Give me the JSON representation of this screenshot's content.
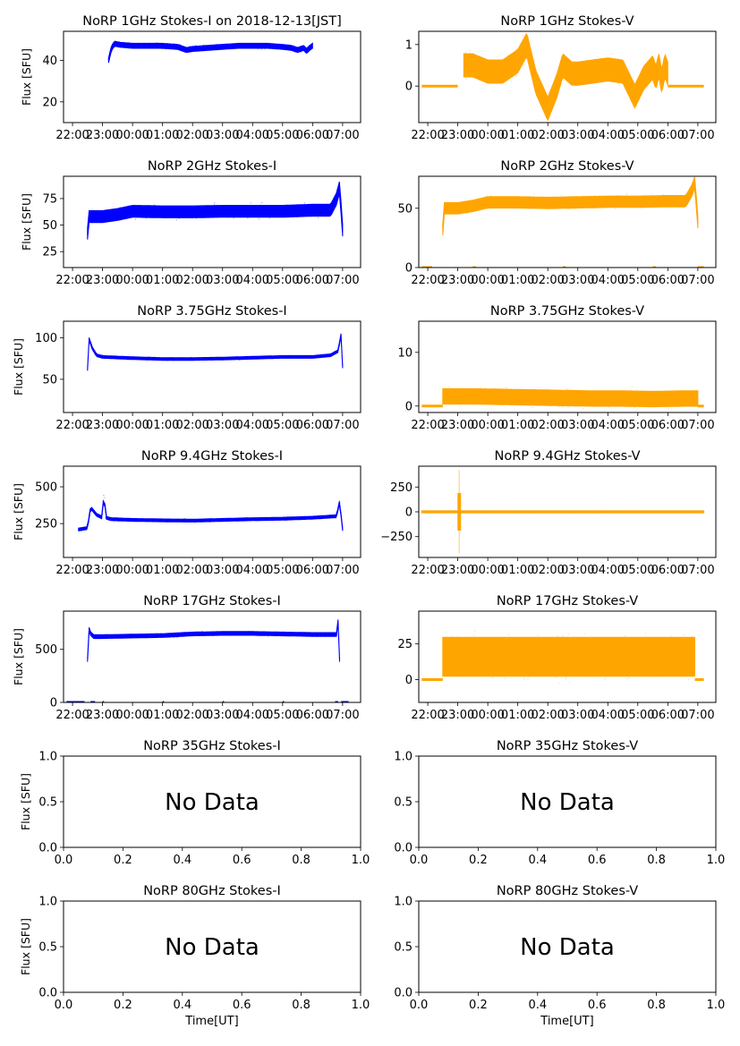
{
  "figure": {
    "x_tick_labels_time": [
      "22:00",
      "23:00",
      "00:00",
      "01:00",
      "02:00",
      "03:00",
      "04:00",
      "05:00",
      "06:00",
      "07:00"
    ],
    "x_tick_labels_nodata": [
      "0.0",
      "0.2",
      "0.4",
      "0.6",
      "0.8",
      "1.0"
    ],
    "y_tick_labels_nodata": [
      "0.0",
      "0.5",
      "1.0"
    ],
    "ylabel": "Flux [SFU]",
    "xlabel_bottom": "Time[UT]",
    "no_data_text": "No Data",
    "colors": {
      "stokes_i": "#0000ff",
      "stokes_v": "#ffa500",
      "axis": "#000000"
    }
  },
  "chart_data": [
    {
      "type": "scatter",
      "row": 0,
      "col": 0,
      "title": "NoRP 1GHz Stokes-I on 2018-12-13[JST]",
      "xlabel": "",
      "ylabel": "Flux [SFU]",
      "xlim_hours": [
        -2.3,
        7.6
      ],
      "ylim": [
        10,
        54
      ],
      "yticks": [
        20,
        40
      ],
      "ytick_labels": [
        "20",
        "40"
      ],
      "x_tick_labels": [
        "22:00",
        "23:00",
        "00:00",
        "01:00",
        "02:00",
        "03:00",
        "04:00",
        "05:00",
        "06:00",
        "07:00"
      ],
      "series": [
        {
          "name": "Stokes-I",
          "color": "#0000ff",
          "x": [
            -0.8,
            -0.7,
            -0.6,
            -0.4,
            0,
            0.5,
            1,
            1.5,
            1.8,
            2,
            2.5,
            3,
            3.5,
            4,
            4.5,
            5,
            5.3,
            5.5,
            5.7,
            5.8,
            5.9,
            6.0
          ],
          "y": [
            40,
            46,
            48,
            47.5,
            47,
            47,
            47,
            46.5,
            45,
            45.5,
            46,
            46.5,
            47,
            47,
            47,
            46.5,
            46,
            45,
            46,
            44.5,
            46,
            47
          ],
          "spread": 1.5
        }
      ]
    },
    {
      "type": "scatter",
      "row": 0,
      "col": 1,
      "title": "NoRP 1GHz Stokes-V",
      "xlabel": "",
      "ylabel": "",
      "xlim_hours": [
        -2.3,
        7.6
      ],
      "ylim": [
        -0.88,
        1.32
      ],
      "yticks": [
        0,
        1
      ],
      "ytick_labels": [
        "0",
        "1"
      ],
      "x_tick_labels": [
        "22:00",
        "23:00",
        "00:00",
        "01:00",
        "02:00",
        "03:00",
        "04:00",
        "05:00",
        "06:00",
        "07:00"
      ],
      "series": [
        {
          "name": "Stokes-V",
          "color": "#ffa500",
          "x": [
            -0.8,
            -0.5,
            0,
            0.5,
            1,
            1.3,
            1.6,
            2,
            2.3,
            2.5,
            2.8,
            3,
            3.5,
            4,
            4.5,
            4.9,
            5.2,
            5.5,
            5.6,
            5.7,
            5.8,
            5.9,
            6.0
          ],
          "y": [
            0.5,
            0.5,
            0.35,
            0.35,
            0.6,
            1.0,
            0.1,
            -0.55,
            0.0,
            0.5,
            0.3,
            0.3,
            0.35,
            0.4,
            0.35,
            -0.25,
            0.2,
            0.45,
            0.2,
            0.5,
            0.1,
            0.5,
            0.3
          ],
          "spread": 0.35
        }
      ],
      "baseline_segments": [
        [
          -2.2,
          -1.0
        ],
        [
          6.0,
          7.2
        ]
      ]
    },
    {
      "type": "scatter",
      "row": 1,
      "col": 0,
      "title": "NoRP 2GHz Stokes-I",
      "xlabel": "",
      "ylabel": "Flux [SFU]",
      "xlim_hours": [
        -2.3,
        7.6
      ],
      "ylim": [
        10,
        96
      ],
      "yticks": [
        25,
        50,
        75
      ],
      "ytick_labels": [
        "25",
        "50",
        "75"
      ],
      "x_tick_labels": [
        "22:00",
        "23:00",
        "00:00",
        "01:00",
        "02:00",
        "03:00",
        "04:00",
        "05:00",
        "06:00",
        "07:00"
      ],
      "series": [
        {
          "name": "Stokes-I",
          "color": "#0000ff",
          "x": [
            -1.5,
            -1.45,
            -1.0,
            -0.5,
            0,
            1,
            2,
            3,
            4,
            5,
            6,
            6.6,
            6.8,
            6.9,
            7.0
          ],
          "y": [
            42,
            58,
            58,
            60,
            63,
            62.5,
            62.5,
            63,
            63,
            63,
            64,
            64,
            75,
            86,
            45
          ],
          "spread": 7
        }
      ]
    },
    {
      "type": "scatter",
      "row": 1,
      "col": 1,
      "title": "NoRP 2GHz Stokes-V",
      "xlabel": "",
      "ylabel": "",
      "xlim_hours": [
        -2.3,
        7.6
      ],
      "ylim": [
        0,
        77
      ],
      "yticks": [
        0,
        50
      ],
      "ytick_labels": [
        "0",
        "50"
      ],
      "x_tick_labels": [
        "22:00",
        "23:00",
        "00:00",
        "01:00",
        "02:00",
        "03:00",
        "04:00",
        "05:00",
        "06:00",
        "07:00"
      ],
      "series": [
        {
          "name": "Stokes-V",
          "color": "#ffa500",
          "x": [
            -1.5,
            -1.45,
            -1.0,
            -0.5,
            0,
            1,
            2,
            3,
            4,
            5,
            6,
            6.6,
            6.8,
            6.9,
            7.0
          ],
          "y": [
            32,
            50,
            50,
            52,
            55,
            55,
            54.5,
            55,
            55.5,
            55.5,
            56,
            56,
            65,
            72,
            38
          ],
          "spread": 6
        }
      ],
      "baseline_segments": [
        [
          -2.2,
          -1.85
        ],
        [
          -0.5,
          -0.4
        ],
        [
          2.5,
          2.6
        ],
        [
          5.5,
          5.6
        ],
        [
          7.0,
          7.2
        ]
      ]
    },
    {
      "type": "scatter",
      "row": 2,
      "col": 0,
      "title": "NoRP 3.75GHz Stokes-I",
      "xlabel": "",
      "ylabel": "Flux [SFU]",
      "xlim_hours": [
        -2.3,
        7.6
      ],
      "ylim": [
        10,
        120
      ],
      "yticks": [
        50,
        100
      ],
      "ytick_labels": [
        "50",
        "100"
      ],
      "x_tick_labels": [
        "22:00",
        "23:00",
        "00:00",
        "01:00",
        "02:00",
        "03:00",
        "04:00",
        "05:00",
        "06:00",
        "07:00"
      ],
      "series": [
        {
          "name": "Stokes-I",
          "color": "#0000ff",
          "x": [
            -1.5,
            -1.45,
            -1.35,
            -1.2,
            -1.0,
            0,
            1,
            2,
            3,
            4,
            5,
            6,
            6.6,
            6.85,
            6.95,
            7.0
          ],
          "y": [
            62,
            99,
            88,
            79,
            77,
            75.5,
            74.5,
            74.5,
            75,
            76,
            77,
            77,
            79,
            84,
            104,
            65
          ],
          "spread": 2
        }
      ]
    },
    {
      "type": "scatter",
      "row": 2,
      "col": 1,
      "title": "NoRP 3.75GHz Stokes-V",
      "xlabel": "",
      "ylabel": "",
      "xlim_hours": [
        -2.3,
        7.6
      ],
      "ylim": [
        -1.2,
        15.8
      ],
      "yticks": [
        0,
        10
      ],
      "ytick_labels": [
        "0",
        "10"
      ],
      "x_tick_labels": [
        "22:00",
        "23:00",
        "00:00",
        "01:00",
        "02:00",
        "03:00",
        "04:00",
        "05:00",
        "06:00",
        "07:00"
      ],
      "series": [
        {
          "name": "Stokes-V",
          "color": "#ffa500",
          "x": [
            -1.5,
            -0.5,
            0.5,
            1.5,
            2.5,
            3.5,
            4.5,
            5.5,
            6.5,
            7.0
          ],
          "y": [
            1.8,
            1.8,
            1.7,
            1.6,
            1.5,
            1.4,
            1.4,
            1.3,
            1.4,
            1.4
          ],
          "spread": 1.8
        }
      ],
      "baseline_segments": [
        [
          -2.2,
          -1.5
        ],
        [
          7.0,
          7.2
        ]
      ]
    },
    {
      "type": "scatter",
      "row": 3,
      "col": 0,
      "title": "NoRP 9.4GHz Stokes-I",
      "xlabel": "",
      "ylabel": "Flux [SFU]",
      "xlim_hours": [
        -2.3,
        7.6
      ],
      "ylim": [
        20,
        640
      ],
      "yticks": [
        250,
        500
      ],
      "ytick_labels": [
        "250",
        "500"
      ],
      "x_tick_labels": [
        "22:00",
        "23:00",
        "00:00",
        "01:00",
        "02:00",
        "03:00",
        "04:00",
        "05:00",
        "06:00",
        "07:00"
      ],
      "series": [
        {
          "name": "Stokes-I",
          "color": "#0000ff",
          "x": [
            -1.8,
            -1.5,
            -1.4,
            -1.2,
            -1.0,
            -0.95,
            -0.9,
            -0.7,
            0,
            1,
            2,
            3,
            4,
            5,
            6,
            6.8,
            6.9,
            7.0
          ],
          "y": [
            210,
            220,
            360,
            310,
            290,
            500,
            290,
            280,
            275,
            272,
            270,
            275,
            280,
            283,
            290,
            300,
            400,
            210
          ],
          "spread": 12
        }
      ]
    },
    {
      "type": "scatter",
      "row": 3,
      "col": 1,
      "title": "NoRP 9.4GHz Stokes-V",
      "xlabel": "",
      "ylabel": "",
      "xlim_hours": [
        -2.3,
        7.6
      ],
      "ylim": [
        -460,
        460
      ],
      "yticks": [
        -250,
        0,
        250
      ],
      "ytick_labels": [
        "−250",
        "0",
        "250"
      ],
      "x_tick_labels": [
        "22:00",
        "23:00",
        "00:00",
        "01:00",
        "02:00",
        "03:00",
        "04:00",
        "05:00",
        "06:00",
        "07:00"
      ],
      "series": [
        {
          "name": "Stokes-V",
          "color": "#ffa500",
          "x": [
            -2.2,
            -1.5,
            -1.0,
            -0.95,
            -0.9,
            0,
            1,
            2,
            3,
            4,
            5,
            6,
            7.0,
            7.2
          ],
          "y": [
            0,
            0,
            0,
            0,
            0,
            0,
            0,
            0,
            0,
            0,
            0,
            0,
            0,
            0
          ],
          "spread": 12
        }
      ],
      "spike": {
        "x_hours": -0.95,
        "range": [
          -420,
          420
        ]
      }
    },
    {
      "type": "scatter",
      "row": 4,
      "col": 0,
      "title": "NoRP 17GHz Stokes-I",
      "xlabel": "",
      "ylabel": "Flux [SFU]",
      "xlim_hours": [
        -2.3,
        7.6
      ],
      "ylim": [
        0,
        860
      ],
      "yticks": [
        0,
        500
      ],
      "ytick_labels": [
        "0",
        "500"
      ],
      "x_tick_labels": [
        "22:00",
        "23:00",
        "00:00",
        "01:00",
        "02:00",
        "03:00",
        "04:00",
        "05:00",
        "06:00",
        "07:00"
      ],
      "series": [
        {
          "name": "Stokes-I",
          "color": "#0000ff",
          "x": [
            -1.5,
            -1.45,
            -1.4,
            -1.3,
            -1.0,
            0,
            1,
            2,
            3,
            4,
            5,
            6,
            6.8,
            6.85,
            6.9
          ],
          "y": [
            400,
            690,
            650,
            620,
            620,
            625,
            630,
            645,
            650,
            650,
            645,
            640,
            640,
            770,
            400
          ],
          "spread": 22
        }
      ],
      "baseline_segments": [
        [
          -2.2,
          -1.6
        ],
        [
          -1.4,
          -1.25
        ],
        [
          -1.0,
          -0.95
        ],
        [
          1.0,
          1.05
        ],
        [
          3.0,
          3.05
        ],
        [
          5.0,
          5.05
        ],
        [
          6.75,
          6.85
        ],
        [
          6.95,
          7.2
        ]
      ]
    },
    {
      "type": "scatter",
      "row": 4,
      "col": 1,
      "title": "NoRP 17GHz Stokes-V",
      "xlabel": "",
      "ylabel": "",
      "xlim_hours": [
        -2.3,
        7.6
      ],
      "ylim": [
        -16,
        48
      ],
      "yticks": [
        0,
        25
      ],
      "ytick_labels": [
        "0",
        "25"
      ],
      "x_tick_labels": [
        "22:00",
        "23:00",
        "00:00",
        "01:00",
        "02:00",
        "03:00",
        "04:00",
        "05:00",
        "06:00",
        "07:00"
      ],
      "series": [
        {
          "name": "Stokes-V",
          "color": "#ffa500",
          "x": [
            -1.5,
            0,
            1,
            2,
            3,
            4,
            5,
            6,
            6.9
          ],
          "y": [
            16,
            16,
            16,
            16,
            16,
            16,
            16,
            16,
            16
          ],
          "spread": 17
        }
      ],
      "baseline_segments": [
        [
          -2.2,
          -1.5
        ],
        [
          6.9,
          7.2
        ]
      ]
    },
    {
      "type": "scatter",
      "row": 5,
      "col": 0,
      "title": "NoRP 35GHz Stokes-I",
      "xlabel": "",
      "ylabel": "Flux [SFU]",
      "xlim": [
        0,
        1
      ],
      "ylim": [
        0,
        1
      ],
      "no_data": true,
      "series": []
    },
    {
      "type": "scatter",
      "row": 5,
      "col": 1,
      "title": "NoRP 35GHz Stokes-V",
      "xlabel": "",
      "ylabel": "",
      "xlim": [
        0,
        1
      ],
      "ylim": [
        0,
        1
      ],
      "no_data": true,
      "series": []
    },
    {
      "type": "scatter",
      "row": 6,
      "col": 0,
      "title": "NoRP 80GHz Stokes-I",
      "xlabel": "Time[UT]",
      "ylabel": "Flux [SFU]",
      "xlim": [
        0,
        1
      ],
      "ylim": [
        0,
        1
      ],
      "no_data": true,
      "series": []
    },
    {
      "type": "scatter",
      "row": 6,
      "col": 1,
      "title": "NoRP 80GHz Stokes-V",
      "xlabel": "Time[UT]",
      "ylabel": "",
      "xlim": [
        0,
        1
      ],
      "ylim": [
        0,
        1
      ],
      "no_data": true,
      "series": []
    }
  ]
}
